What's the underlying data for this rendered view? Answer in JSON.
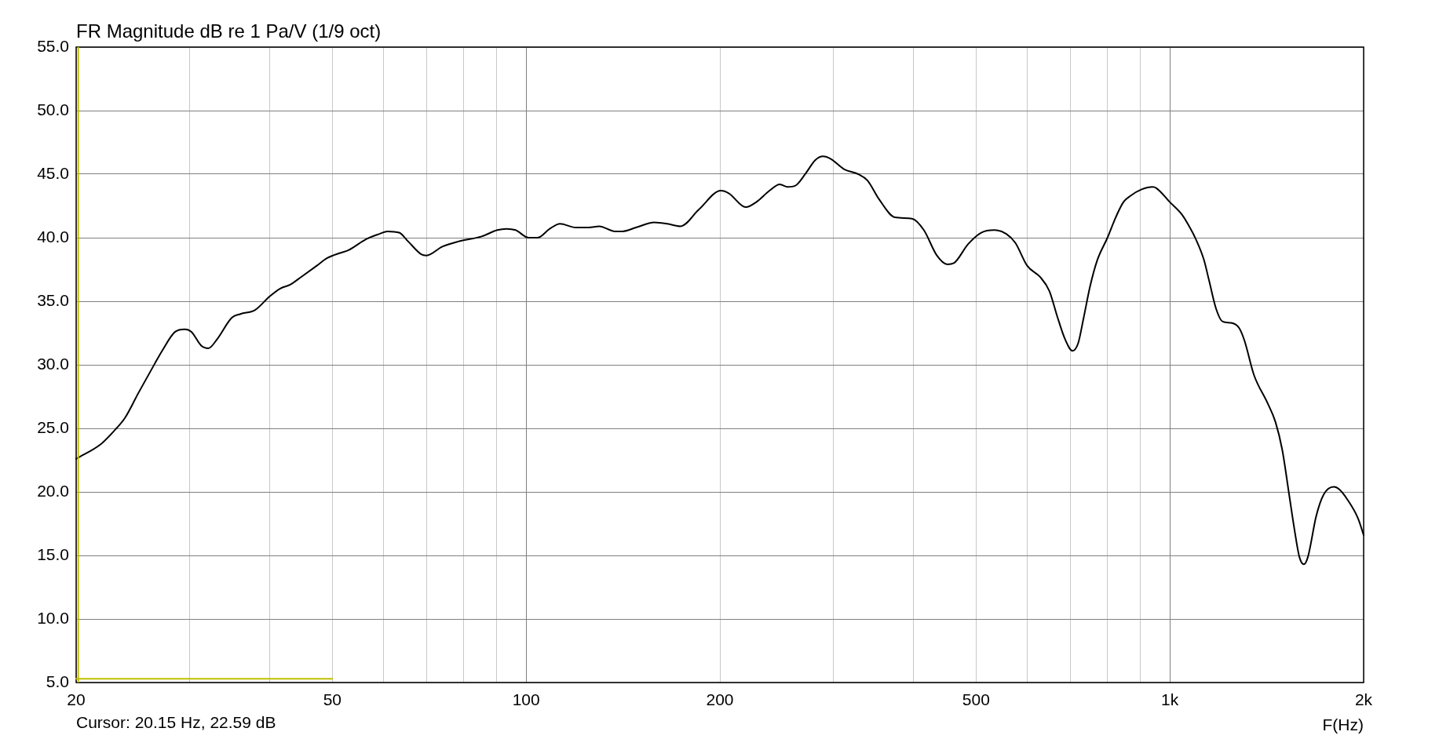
{
  "chart_data": {
    "type": "line",
    "title": "FR Magnitude dB re 1 Pa/V (1/9 oct)",
    "xlabel": "F(Hz)",
    "annotations": [
      "Cursor: 20.15 Hz, 22.59 dB"
    ],
    "x": [
      20,
      21.9,
      23.1,
      23.8,
      25.0,
      26.5,
      27.2,
      28.5,
      29.5,
      30.2,
      31.3,
      32.1,
      33.1,
      34.9,
      36.0,
      37.9,
      40.0,
      41.5,
      43.0,
      44.7,
      47.3,
      49.1,
      51.4,
      52.9,
      56.5,
      59.2,
      60.9,
      63.5,
      65.6,
      68.7,
      70.0,
      74.1,
      78.4,
      85.3,
      90.2,
      93.2,
      96.3,
      100.9,
      104.2,
      108.8,
      112.9,
      119.4,
      125.1,
      129.9,
      137.4,
      141.3,
      148.1,
      158.1,
      165.7,
      173.7,
      185.4,
      200.7,
      206.4,
      219.4,
      227.8,
      238.8,
      247.8,
      254.8,
      262.0,
      272.2,
      281.2,
      289.2,
      297.4,
      311.6,
      328.1,
      339.1,
      353.7,
      374.2,
      397.6,
      414.8,
      434.6,
      451.2,
      461.8,
      486.0,
      509.4,
      534.0,
      557.0,
      575.4,
      600.2,
      629.0,
      650.0,
      668.5,
      687.6,
      705.8,
      720.4,
      734.0,
      752,
      771,
      800,
      824,
      847,
      869,
      904,
      940,
      953,
      1000,
      1045,
      1066,
      1097,
      1129,
      1151,
      1180,
      1208,
      1244,
      1281,
      1306,
      1351,
      1418,
      1459,
      1495,
      1532,
      1562,
      1589,
      1615,
      1639,
      1688,
      1734,
      1798,
      1833,
      1887,
      1961,
      2000
    ],
    "series": [
      {
        "color": "#000000",
        "values": [
          22.6,
          23.8,
          25.0,
          25.8,
          27.8,
          30.1,
          31.1,
          32.6,
          32.8,
          32.6,
          31.5,
          31.3,
          32.0,
          33.7,
          34.0,
          34.3,
          35.4,
          36.0,
          36.3,
          36.9,
          37.8,
          38.4,
          38.8,
          39.0,
          39.9,
          40.3,
          40.5,
          40.4,
          39.7,
          38.7,
          38.6,
          39.3,
          39.7,
          40.1,
          40.6,
          40.7,
          40.6,
          40.0,
          40.0,
          40.7,
          41.1,
          40.8,
          40.8,
          40.9,
          40.5,
          40.5,
          40.8,
          41.2,
          41.1,
          40.9,
          42.2,
          43.7,
          43.5,
          42.4,
          42.8,
          43.7,
          44.2,
          44.0,
          44.1,
          45.1,
          46.1,
          46.4,
          46.2,
          45.4,
          45.0,
          44.5,
          43.0,
          41.6,
          41.5,
          40.6,
          38.6,
          37.9,
          38.0,
          39.5,
          40.4,
          40.6,
          40.3,
          39.6,
          37.8,
          36.9,
          35.8,
          33.8,
          32.0,
          31.1,
          31.7,
          33.6,
          36.2,
          38.2,
          40.0,
          41.6,
          42.8,
          43.3,
          43.8,
          44.0,
          43.9,
          42.8,
          41.8,
          41.1,
          39.9,
          38.3,
          36.6,
          34.4,
          33.4,
          33.3,
          32.9,
          31.9,
          29.2,
          27.0,
          25.5,
          23.3,
          19.8,
          17.0,
          14.9,
          14.3,
          14.9,
          18.1,
          19.8,
          20.4,
          20.2,
          19.4,
          17.9,
          16.6
        ]
      },
      {
        "color": "#c0c000",
        "x": [
          20,
          50
        ],
        "values": [
          5.3,
          5.3
        ]
      }
    ],
    "marker": "none",
    "line_style": "solid",
    "log": "x",
    "xlim": [
      20,
      2000
    ],
    "xticks": [
      20,
      {
        "value": 30,
        "label": null
      },
      {
        "value": 40,
        "label": null
      },
      50,
      {
        "value": 60,
        "label": null
      },
      {
        "value": 70,
        "label": null
      },
      {
        "value": 80,
        "label": null
      },
      {
        "value": 90,
        "label": null
      },
      100,
      200,
      {
        "value": 300,
        "label": null
      },
      {
        "value": 400,
        "label": null
      },
      500,
      {
        "value": 600,
        "label": null
      },
      {
        "value": 700,
        "label": null
      },
      {
        "value": 800,
        "label": null
      },
      {
        "value": 900,
        "label": null
      },
      {
        "value": 1000,
        "label": "1k"
      },
      {
        "value": 2000,
        "label": "2k"
      }
    ],
    "ylim": [
      5,
      55
    ],
    "yticks": [
      {
        "value": 5,
        "label": "5.0"
      },
      {
        "value": 10,
        "label": "10.0"
      },
      {
        "value": 15,
        "label": "15.0"
      },
      {
        "value": 20,
        "label": "20.0"
      },
      {
        "value": 25,
        "label": "25.0"
      },
      {
        "value": 30,
        "label": "30.0"
      },
      {
        "value": 35,
        "label": "35.0"
      },
      {
        "value": 40,
        "label": "40.0"
      },
      {
        "value": 45,
        "label": "45.0"
      },
      {
        "value": 50,
        "label": "50.0"
      },
      {
        "value": 55,
        "label": "55.0"
      }
    ],
    "grid": true,
    "legend": false,
    "ref_lines": [
      {
        "axis": "x",
        "value": 20.15,
        "color": "#c0c000"
      }
    ]
  }
}
